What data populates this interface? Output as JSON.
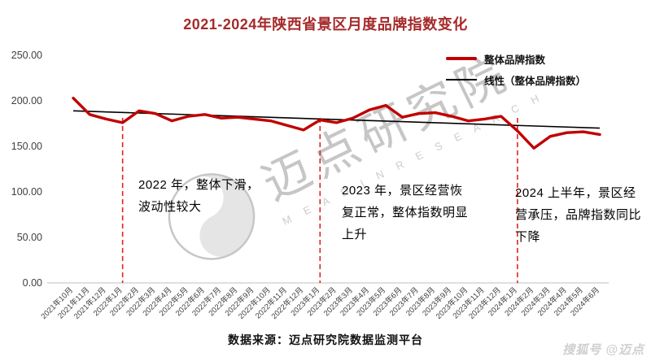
{
  "page": {
    "title": "2021-2024年陕西省景区月度品牌指数变化",
    "source_note": "数据来源：迈点研究院数据监测平台",
    "byline": "搜狐号 @迈点",
    "watermark": {
      "cn": "迈点研究院",
      "en": "M E A D I N  R E S E A R C H"
    }
  },
  "chart_data": {
    "type": "line",
    "title": "2021-2024年陕西省景区月度品牌指数变化",
    "xlabel": "",
    "ylabel": "",
    "ylim": [
      0,
      250
    ],
    "yticks": [
      "0.00",
      "50.00",
      "100.00",
      "150.00",
      "200.00",
      "250.00"
    ],
    "grid": false,
    "legend_position": "top-right",
    "categories": [
      "2021年10月",
      "2021年11月",
      "2021年12月",
      "2022年1月",
      "2022年2月",
      "2022年3月",
      "2022年4月",
      "2022年5月",
      "2022年6月",
      "2022年7月",
      "2022年8月",
      "2022年9月",
      "2022年10月",
      "2022年11月",
      "2022年12月",
      "2023年1月",
      "2023年2月",
      "2023年3月",
      "2023年4月",
      "2023年5月",
      "2023年6月",
      "2023年7月",
      "2023年8月",
      "2023年9月",
      "2023年10月",
      "2023年11月",
      "2023年12月",
      "2024年1月",
      "2024年2月",
      "2024年3月",
      "2024年4月",
      "2024年5月",
      "2024年6月"
    ],
    "series": [
      {
        "name": "整体品牌指数",
        "color": "#C00000",
        "values": [
          203,
          185,
          180,
          176,
          189,
          186,
          178,
          183,
          185,
          181,
          182,
          180,
          178,
          173,
          168,
          179,
          176,
          181,
          190,
          195,
          182,
          186,
          187,
          183,
          178,
          180,
          183,
          167,
          148,
          161,
          165,
          166,
          163
        ]
      },
      {
        "name": "线性（整体品牌指数）",
        "color": "#000000",
        "trend": true,
        "start": 189,
        "end": 170
      }
    ],
    "dashed_lines_at": [
      "2022年1月",
      "2023年1月",
      "2024年1月"
    ],
    "dashed_color": "#E32222",
    "annotations": [
      {
        "text": "2022 年，整体下滑，波动性较大"
      },
      {
        "text": "2023 年，景区经营恢复正常，整体指数明显上升"
      },
      {
        "text": "2024 上半年，景区经营承压，品牌指数同比下降"
      }
    ]
  }
}
